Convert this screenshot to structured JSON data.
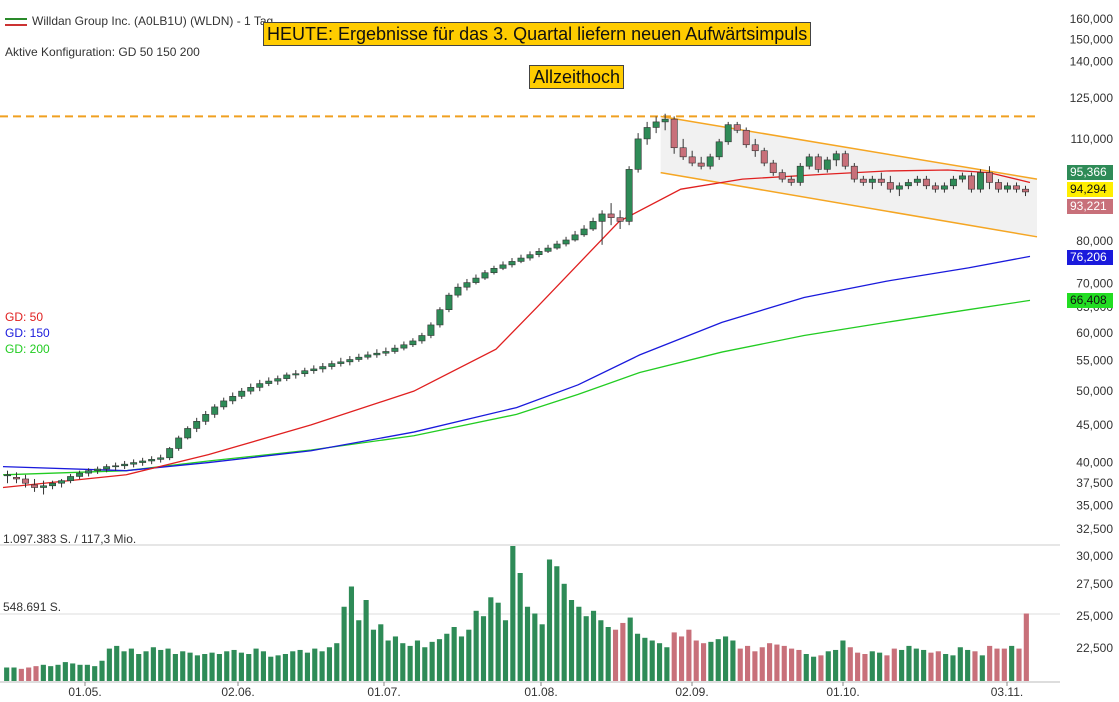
{
  "header": {
    "instrument": "Willdan Group Inc. (A0LB1U) (WLDN) - 1 Tag",
    "config": "Aktive Konfiguration: GD 50 150 200"
  },
  "banners": {
    "headline": "HEUTE: Ergebnisse für das 3. Quartal liefern neuen Aufwärtsimpuls",
    "ath": "Allzeithoch"
  },
  "moving_averages": {
    "gd50": {
      "label": "GD: 50",
      "color": "#e02020"
    },
    "gd150": {
      "label": "GD: 150",
      "color": "#1a1adc"
    },
    "gd200": {
      "label": "GD: 200",
      "color": "#22cc22"
    }
  },
  "price_badges": [
    {
      "value": "95,366",
      "bg": "#2e8b57",
      "fg": "#ffffff"
    },
    {
      "value": "94,294",
      "bg": "#ffee00",
      "fg": "#111111"
    },
    {
      "value": "93,221",
      "bg": "#c8707a",
      "fg": "#ffffff"
    },
    {
      "value": "76,206",
      "bg": "#1a1adc",
      "fg": "#ffffff"
    },
    {
      "value": "66,408",
      "bg": "#22dd22",
      "fg": "#111111"
    }
  ],
  "volume_labels": {
    "max": "1.097.383 S. / 117,3 Mio.",
    "mid": "548.691 S."
  },
  "chart_data": {
    "type": "candlestick",
    "price_axis_ticks": [
      "160,000",
      "150,000",
      "140,000",
      "125,000",
      "110,000",
      "80,000",
      "70,000",
      "65,000",
      "60,000",
      "55,000",
      "50,000",
      "45,000",
      "40,000",
      "37,500",
      "35,000",
      "32,500"
    ],
    "volume_axis_ticks": [
      "30,000",
      "27,500",
      "25,000",
      "22,500"
    ],
    "x_tick_labels": [
      "01.05.",
      "02.06.",
      "01.07.",
      "01.08.",
      "02.09.",
      "01.10.",
      "03.11."
    ],
    "all_time_high_level": 118,
    "channel": {
      "upper_start": 118,
      "upper_end": 97,
      "lower_start": 99,
      "lower_end": 81
    },
    "ohlc_anchors": [
      [
        38.5,
        39,
        37.5,
        38.5
      ],
      [
        38.2,
        38.8,
        37.5,
        38
      ],
      [
        38,
        38.5,
        37,
        37.5
      ],
      [
        37.3,
        38,
        36.5,
        37
      ],
      [
        37,
        37.8,
        36.2,
        37.2
      ],
      [
        37.2,
        37.8,
        36.8,
        37.5
      ],
      [
        37.5,
        38,
        37,
        37.8
      ],
      [
        37.8,
        38.6,
        37.5,
        38.3
      ],
      [
        38.3,
        39,
        38,
        38.7
      ],
      [
        38.7,
        39.3,
        38.3,
        39
      ],
      [
        39,
        39.5,
        38.6,
        39.2
      ],
      [
        39.2,
        39.8,
        38.8,
        39.5
      ],
      [
        39.5,
        40,
        39,
        39.6
      ],
      [
        39.6,
        40.2,
        39.2,
        39.8
      ],
      [
        39.8,
        40.4,
        39.4,
        40
      ],
      [
        40,
        40.6,
        39.6,
        40.2
      ],
      [
        40.2,
        40.8,
        39.8,
        40.4
      ],
      [
        40.4,
        41,
        40,
        40.6
      ],
      [
        40.6,
        42,
        40.3,
        41.8
      ],
      [
        41.8,
        43.5,
        41.5,
        43.2
      ],
      [
        43.2,
        44.8,
        43,
        44.5
      ],
      [
        44.5,
        46,
        44,
        45.5
      ],
      [
        45.5,
        47,
        45,
        46.5
      ],
      [
        46.5,
        48,
        46,
        47.6
      ],
      [
        47.6,
        49,
        47.2,
        48.5
      ],
      [
        48.5,
        49.8,
        48,
        49.2
      ],
      [
        49.2,
        50.5,
        48.8,
        50
      ],
      [
        50,
        51.2,
        49.5,
        50.6
      ],
      [
        50.6,
        51.8,
        50,
        51.2
      ],
      [
        51.2,
        52.2,
        50.8,
        51.6
      ],
      [
        51.6,
        52.5,
        51,
        52
      ],
      [
        52,
        53,
        51.6,
        52.6
      ],
      [
        52.6,
        53.4,
        52,
        52.8
      ],
      [
        52.8,
        53.8,
        52.3,
        53.3
      ],
      [
        53.3,
        54.2,
        52.8,
        53.6
      ],
      [
        53.6,
        54.6,
        53,
        54
      ],
      [
        54,
        55,
        53.5,
        54.5
      ],
      [
        54.5,
        55.5,
        54,
        54.8
      ],
      [
        54.8,
        55.8,
        54.2,
        55.2
      ],
      [
        55.2,
        56.2,
        54.8,
        55.6
      ],
      [
        55.6,
        56.6,
        55.2,
        56
      ],
      [
        56,
        57,
        55.5,
        56.3
      ],
      [
        56.3,
        57.3,
        55.8,
        56.6
      ],
      [
        56.6,
        57.8,
        56.2,
        57.2
      ],
      [
        57.2,
        58.4,
        56.8,
        57.8
      ],
      [
        57.8,
        59,
        57.4,
        58.5
      ],
      [
        58.5,
        60,
        58,
        59.5
      ],
      [
        59.5,
        62,
        59,
        61.5
      ],
      [
        61.5,
        65,
        61,
        64.5
      ],
      [
        64.5,
        68,
        64,
        67.5
      ],
      [
        67.5,
        70,
        67,
        69.2
      ],
      [
        69.2,
        71,
        68.5,
        70.2
      ],
      [
        70.2,
        72,
        69.8,
        71.2
      ],
      [
        71.2,
        73,
        70.8,
        72.4
      ],
      [
        72.4,
        74,
        72,
        73.4
      ],
      [
        73.4,
        75,
        73,
        74.2
      ],
      [
        74.2,
        75.8,
        73.6,
        75
      ],
      [
        75,
        76.6,
        74.6,
        75.8
      ],
      [
        75.8,
        77.4,
        75.2,
        76.6
      ],
      [
        76.6,
        78.2,
        76,
        77.4
      ],
      [
        77.4,
        79,
        77,
        78.2
      ],
      [
        78.2,
        80,
        77.8,
        79.2
      ],
      [
        79.2,
        81,
        78.6,
        80.2
      ],
      [
        80.2,
        82.5,
        79.8,
        81.5
      ],
      [
        81.5,
        84,
        81,
        83
      ],
      [
        83,
        86,
        82.5,
        85
      ],
      [
        85,
        88,
        79,
        87
      ],
      [
        87,
        90,
        84,
        86
      ],
      [
        86,
        88,
        83,
        85
      ],
      [
        85,
        101,
        84,
        100
      ],
      [
        100,
        112,
        99,
        110
      ],
      [
        110,
        116,
        108,
        114
      ],
      [
        114,
        118,
        112,
        116
      ],
      [
        116,
        119,
        113,
        117
      ],
      [
        117,
        118,
        105,
        107
      ],
      [
        107,
        110,
        103,
        104
      ],
      [
        104,
        106,
        101,
        102
      ],
      [
        102,
        104,
        100,
        101
      ],
      [
        101,
        105,
        100,
        104
      ],
      [
        104,
        110,
        103,
        109
      ],
      [
        109,
        116,
        108,
        115
      ],
      [
        115,
        116,
        112,
        113
      ],
      [
        113,
        114,
        107,
        108
      ],
      [
        108,
        110,
        104,
        106
      ],
      [
        106,
        107,
        101,
        102
      ],
      [
        102,
        103,
        98,
        99
      ],
      [
        99,
        100,
        96,
        97
      ],
      [
        97,
        98,
        95,
        96
      ],
      [
        96,
        102,
        95,
        101
      ],
      [
        101,
        105,
        100,
        104
      ],
      [
        104,
        105,
        99,
        100
      ],
      [
        100,
        104,
        99,
        103
      ],
      [
        103,
        106,
        101,
        105
      ],
      [
        105,
        106,
        100,
        101
      ],
      [
        101,
        102,
        96,
        97
      ],
      [
        97,
        98,
        95,
        96
      ],
      [
        96,
        98,
        94,
        97
      ],
      [
        97,
        99,
        95,
        96
      ],
      [
        96,
        98,
        93,
        94
      ],
      [
        94,
        96,
        92,
        95
      ],
      [
        95,
        97,
        94,
        96
      ],
      [
        96,
        98,
        95,
        97
      ],
      [
        97,
        98,
        94,
        95
      ],
      [
        95,
        96,
        93,
        94
      ],
      [
        94,
        96,
        93,
        95
      ],
      [
        95,
        98,
        94,
        97
      ],
      [
        97,
        99,
        96,
        98
      ],
      [
        98,
        99,
        93,
        94
      ],
      [
        94,
        100,
        93,
        99
      ],
      [
        99,
        101,
        94,
        96
      ],
      [
        96,
        97,
        93,
        94
      ],
      [
        94,
        96,
        93,
        95
      ],
      [
        95,
        96,
        93,
        94
      ],
      [
        94,
        95,
        92,
        93.2
      ]
    ],
    "volume_anchors": [
      10,
      10,
      9,
      10,
      11,
      12,
      11,
      12,
      14,
      13,
      12,
      12,
      11,
      15,
      24,
      26,
      22,
      24,
      20,
      22,
      25,
      23,
      24,
      20,
      22,
      21,
      19,
      20,
      21,
      20,
      22,
      23,
      21,
      20,
      24,
      22,
      18,
      19,
      20,
      22,
      23,
      21,
      24,
      22,
      25,
      28,
      55,
      70,
      45,
      60,
      38,
      42,
      30,
      33,
      28,
      26,
      30,
      25,
      29,
      31,
      35,
      40,
      33,
      38,
      52,
      48,
      62,
      58,
      45,
      100,
      80,
      55,
      50,
      42,
      90,
      85,
      72,
      60,
      55,
      48,
      52,
      45,
      40,
      38,
      43,
      47,
      35,
      32,
      30,
      28,
      25,
      36,
      33,
      38,
      30,
      28,
      29,
      31,
      33,
      30,
      24,
      26,
      22,
      25,
      28,
      27,
      26,
      24,
      23,
      20,
      18,
      19,
      22,
      23,
      30,
      25,
      21,
      20,
      22,
      21,
      19,
      24,
      23,
      26,
      24,
      23,
      21,
      22,
      20,
      19,
      25,
      23,
      22,
      19,
      26,
      24,
      24,
      26,
      24,
      50
    ],
    "gd50_anchors": [
      [
        0,
        37
      ],
      [
        0.12,
        38.5
      ],
      [
        0.2,
        41
      ],
      [
        0.3,
        45
      ],
      [
        0.4,
        50
      ],
      [
        0.48,
        57
      ],
      [
        0.52,
        65
      ],
      [
        0.6,
        85
      ],
      [
        0.66,
        94
      ],
      [
        0.72,
        97
      ],
      [
        0.8,
        98.5
      ],
      [
        0.86,
        99.5
      ],
      [
        0.92,
        99.8
      ],
      [
        0.96,
        99
      ],
      [
        1,
        96
      ]
    ],
    "gd150_anchors": [
      [
        0,
        39.5
      ],
      [
        0.12,
        39
      ],
      [
        0.2,
        40
      ],
      [
        0.3,
        41.5
      ],
      [
        0.4,
        44
      ],
      [
        0.5,
        47.5
      ],
      [
        0.56,
        51
      ],
      [
        0.62,
        56
      ],
      [
        0.7,
        62
      ],
      [
        0.78,
        67
      ],
      [
        0.86,
        70.5
      ],
      [
        0.94,
        73.5
      ],
      [
        1,
        76.2
      ]
    ],
    "gd200_anchors": [
      [
        0,
        38.5
      ],
      [
        0.12,
        39
      ],
      [
        0.2,
        40.2
      ],
      [
        0.3,
        41.6
      ],
      [
        0.4,
        43.5
      ],
      [
        0.5,
        46.5
      ],
      [
        0.56,
        49.5
      ],
      [
        0.62,
        53
      ],
      [
        0.7,
        56.5
      ],
      [
        0.78,
        59.5
      ],
      [
        0.86,
        62
      ],
      [
        0.94,
        64.5
      ],
      [
        1,
        66.4
      ]
    ]
  }
}
